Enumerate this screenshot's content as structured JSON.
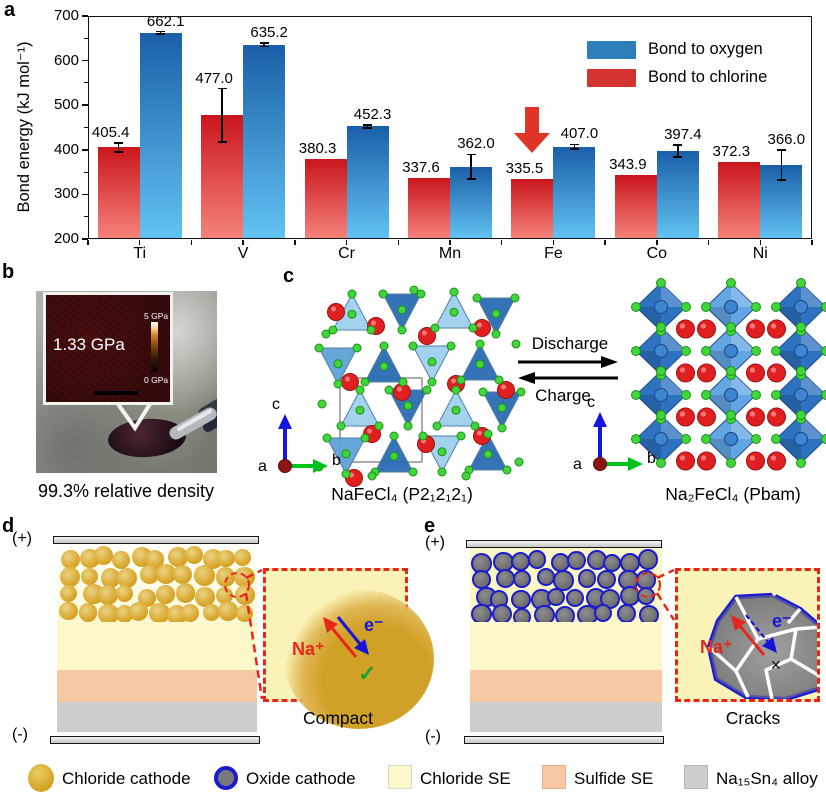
{
  "panels": {
    "a": {
      "letter": "a"
    },
    "b": {
      "letter": "b",
      "inset_value": "1.33 GPa",
      "scale_top": "5 GPa",
      "scale_bottom": "0 GPa",
      "caption": "99.3% relative density"
    },
    "c": {
      "letter": "c",
      "left_caption": "NaFeCl₄ (P2₁2₁2₁)",
      "right_caption": "Na₂FeCl₄ (Pbam)",
      "forward_label": "Discharge",
      "backward_label": "Charge",
      "axes": {
        "up": "c",
        "right": "b",
        "origin": "a"
      }
    },
    "d": {
      "letter": "d",
      "top_electrode": "(+)",
      "bottom_electrode": "(-)",
      "ion_label": "Na⁺",
      "electron_label": "e⁻",
      "check_mark": "✓",
      "caption": "Compact"
    },
    "e": {
      "letter": "e",
      "top_electrode": "(+)",
      "bottom_electrode": "(-)",
      "ion_label": "Na⁺",
      "electron_label": "e⁻",
      "cross_mark": "✕",
      "caption": "Cracks"
    }
  },
  "chart_data": {
    "type": "bar",
    "title": "",
    "categories": [
      "Ti",
      "V",
      "Cr",
      "Mn",
      "Fe",
      "Co",
      "Ni"
    ],
    "series": [
      {
        "name": "Bond to chlorine",
        "values": [
          405.4,
          477.0,
          380.3,
          337.6,
          335.5,
          343.9,
          372.3
        ],
        "errors": [
          10,
          60,
          0,
          0,
          0,
          0,
          0
        ],
        "color_top": "#c9161c",
        "color_bottom": "#f5837b",
        "legend_color": "#d43430"
      },
      {
        "name": "Bond to oxygen",
        "values": [
          662.1,
          635.2,
          452.3,
          362.0,
          407.0,
          397.4,
          366.0
        ],
        "errors": [
          3,
          4,
          3,
          28,
          5,
          13,
          34
        ],
        "color_top": "#1a5fa8",
        "color_bottom": "#62c3f2",
        "legend_color": "#2e7eb8"
      }
    ],
    "legend_order": [
      "Bond to oxygen",
      "Bond to chlorine"
    ],
    "ylabel": "Bond energy (kJ mol⁻¹)",
    "ylim": [
      200,
      700
    ],
    "yticks": [
      200,
      300,
      400,
      500,
      600,
      700
    ],
    "grid": false,
    "legend_position": "upper right",
    "annotation": {
      "type": "down-arrow",
      "category": "Fe",
      "series": "Bond to chlorine",
      "color": "#de3526"
    }
  },
  "bottom_legend": {
    "items": [
      {
        "label": "Chloride cathode",
        "swatch": "gold-circle"
      },
      {
        "label": "Oxide cathode",
        "swatch": "oxide-circle"
      },
      {
        "label": "Chloride SE",
        "swatch": "yellow-square"
      },
      {
        "label": "Sulfide SE",
        "swatch": "peach-square"
      },
      {
        "label": "Na₁₅Sn₄ alloy",
        "swatch": "gray-square"
      }
    ]
  },
  "colors": {
    "chloride_se": "#fcf8ca",
    "sulfide_se": "#f6c9a2",
    "alloy_gray": "#cdcdcd",
    "cathode_gold": "#d9a62a",
    "oxide_gray": "#7a7a7a",
    "oxide_border_blue": "#1b1bd0",
    "crystal_green": "#3ed639",
    "crystal_red": "#e02020",
    "octahedron_blue": "#2e73c2",
    "tetrahedron_light": "#9fd0ee",
    "tetrahedron_dark": "#2a6cb5"
  }
}
